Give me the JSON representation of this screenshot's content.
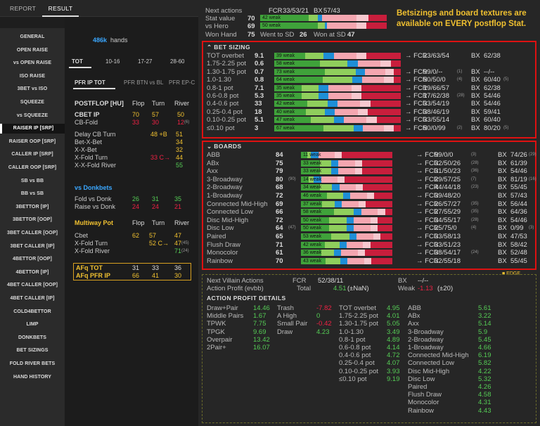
{
  "tabs": [
    "REPORT",
    "RESULT"
  ],
  "sidebar": [
    "GENERAL",
    "OPEN RAISE",
    "vs OPEN RAISE",
    "ISO RAISE",
    "3BET vs ISO",
    "SQUEEZE",
    "vs SQUEEZE",
    "RAISER IP [SRP]",
    "RAISER OOP [SRP]",
    "CALLER IP [SRP]",
    "CALLER OOP [SRP]",
    "SB vs BB",
    "BB vs SB",
    "3BETTOR [IP]",
    "3BETTOR [OOP]",
    "3BET CALLER [OOP]",
    "3BET CALLER [IP]",
    "4BETTOR [OOP]",
    "4BETTOR [IP]",
    "4BET CALLER [OOP]",
    "4BET CALLER [IP]",
    "COLD4BETTOR",
    "LIMP",
    "DONKBETS",
    "BET SIZINGS",
    "FOLD RIVER BETS",
    "HAND HISTORY"
  ],
  "hands": {
    "count": "486k",
    "label": "hands"
  },
  "stack_tabs": [
    "TOT",
    "10-16",
    "17-27",
    "28-60"
  ],
  "pos_tabs": [
    "PFR IP TOT",
    "PFR BTN vs BL",
    "PFR EP-C"
  ],
  "postflop": {
    "title": "POSTFLOP [HU]",
    "cols": [
      "Flop",
      "Turn",
      "River"
    ],
    "rows": [
      [
        "CBET IP",
        "70",
        "57",
        "50",
        ""
      ],
      [
        "CB-Fold",
        "33",
        "30",
        "12",
        "(6)"
      ]
    ]
  },
  "delay": [
    [
      "Delay CB Turn",
      "",
      "48 +B",
      "51"
    ],
    [
      "Bet-X-Bet",
      "",
      "",
      "34"
    ],
    [
      "X-X-Bet",
      "",
      "",
      "32"
    ],
    [
      "X-Fold Turn",
      "",
      "33 C→",
      "44"
    ],
    [
      "X-X-Fold River",
      "",
      "",
      "55"
    ]
  ],
  "donk": {
    "title": "vs Donkbets",
    "rows": [
      [
        "Fold vs Donk",
        "26",
        "31",
        "35"
      ],
      [
        "Raise vs Donk",
        "24",
        "24",
        "21"
      ]
    ]
  },
  "multi": {
    "title": "Multiway Pot",
    "cols": [
      "Flop",
      "Turn",
      "River"
    ],
    "rows": [
      [
        "Cbet",
        "62",
        "57",
        "47"
      ],
      [
        "X-Fold Turn",
        "",
        "52 C→",
        "47"
      ],
      [
        "X-Fold River",
        "",
        "",
        "71"
      ]
    ],
    "subs": [
      "(45)",
      "(24)"
    ]
  },
  "afq": {
    "rows": [
      [
        "AFq TOT",
        "31",
        "33",
        "36"
      ],
      [
        "AFq PFR IP",
        "66",
        "41",
        "30"
      ]
    ]
  },
  "summary": {
    "rows": [
      [
        "Next actions",
        "",
        "FCR",
        "33/53/21",
        "BX",
        "57/43"
      ],
      [
        "Stat value",
        "70",
        "42 weak",
        "",
        "",
        ""
      ],
      [
        "vs Hero",
        "69",
        "50 weak",
        "",
        "",
        ""
      ],
      [
        "Won Hand",
        "75",
        "Went to SD",
        "26",
        "Won at SD",
        "47"
      ]
    ]
  },
  "note": "Betsizings and board textures are available on EVERY postflop Stat.",
  "betsizing": {
    "title": "BET SIZING",
    "rows": [
      [
        "TOT overbet",
        "9.1",
        "39 weak",
        "23/63/54",
        "",
        "62/38",
        ""
      ],
      [
        "1.75-2.25 pot",
        "0.6",
        "58 weak",
        "",
        "",
        "",
        ""
      ],
      [
        "1.30-1.75 pot",
        "0.7",
        "73 weak",
        "99/0/--",
        "(1)",
        "--/--",
        ""
      ],
      [
        "1.0-1.30",
        "0.8",
        "64 weak",
        "50/50/0",
        "(4)",
        "60/40",
        "(5)"
      ],
      [
        "0.8-1 pot",
        "7.1",
        "35 weak",
        "19/66/57",
        "",
        "62/38",
        ""
      ],
      [
        "0.6-0.8 pot",
        "5.3",
        "35 weak",
        "17/62/38",
        "(28)",
        "54/46",
        ""
      ],
      [
        "0.4-0.6 pot",
        "33",
        "42 weak",
        "33/54/19",
        "",
        "54/46",
        ""
      ],
      [
        "0.25-0.4 pot",
        "18",
        "40 weak",
        "38/46/19",
        "",
        "59/41",
        ""
      ],
      [
        "0.10-0.25 pot",
        "5.1",
        "47 weak",
        "33/55/14",
        "",
        "60/40",
        ""
      ],
      [
        "≤0.10 pot",
        "3",
        "67 weak",
        "50/0/99",
        "(2)",
        "80/20",
        "(5)"
      ]
    ]
  },
  "boards": {
    "title": "BOARDS",
    "rows": [
      [
        "ABB",
        "84",
        "",
        "11 weak",
        "99/0/0",
        "(3)",
        "74/26",
        "(29)"
      ],
      [
        "ABx",
        "75",
        "",
        "33 weak",
        "32/50/26",
        "(28)",
        "61/39",
        ""
      ],
      [
        "Axx",
        "79",
        "",
        "33 weak",
        "31/50/23",
        "(36)",
        "54/46",
        ""
      ],
      [
        "3-Broadway",
        "80",
        "(90)",
        "14 weak",
        "29/57/25",
        "(7)",
        "81/19",
        "(16)"
      ],
      [
        "2-Broadway",
        "68",
        "",
        "34 weak",
        "44/44/18",
        "(23)",
        "55/45",
        ""
      ],
      [
        "1-Broadway",
        "72",
        "",
        "46 weak",
        "39/48/20",
        "",
        "57/43",
        ""
      ],
      [
        "Connected Mid-High",
        "69",
        "",
        "37 weak",
        "26/57/27",
        "(35)",
        "56/44",
        ""
      ],
      [
        "Connected Low",
        "66",
        "",
        "58 weak",
        "27/55/29",
        "(35)",
        "64/36",
        ""
      ],
      [
        "Disc Mid-High",
        "72",
        "",
        "50 weak",
        "34/55/17",
        "(28)",
        "54/46",
        ""
      ],
      [
        "Disc Low",
        "64",
        "(47)",
        "50 weak",
        "25/75/0",
        "(4)",
        "0/99",
        "(3)"
      ],
      [
        "Paired",
        "65",
        "",
        "53 weak",
        "33/58/13",
        "",
        "47/53",
        ""
      ],
      [
        "Flush Draw",
        "71",
        "",
        "42 weak",
        "33/51/23",
        "",
        "58/42",
        ""
      ],
      [
        "Monocolor",
        "61",
        "",
        "36 weak",
        "38/54/17",
        "(24)",
        "52/48",
        ""
      ],
      [
        "Rainbow",
        "70",
        "",
        "43 weak",
        "32/55/18",
        "",
        "55/45",
        ""
      ]
    ]
  },
  "edge": "EDGE",
  "next_villain": {
    "label": "Next Villain Actions",
    "fcr_label": "FCR",
    "fcr": "52/38/11",
    "bx_label": "BX",
    "bx": "--/--"
  },
  "action_profit": {
    "label": "Action Profit (evbb)",
    "total_label": "Total",
    "total": "4.51",
    "total_sub": "(±NaN)",
    "weak_label": "Weak",
    "weak": "-1.13",
    "weak_sub": "(±20)"
  },
  "apd": {
    "title": "ACTION PROFIT DETAILS",
    "c1": [
      [
        "Draw+Pair",
        "14.46"
      ],
      [
        "Middle Pairs",
        "1.67"
      ],
      [
        "TPWK",
        "7.75"
      ],
      [
        "TPGK",
        "9.69"
      ],
      [
        "Overpair",
        "13.42"
      ],
      [
        "2Pair+",
        "16.07"
      ]
    ],
    "c2": [
      [
        "Trash",
        "-7.82"
      ],
      [
        "A High",
        "0"
      ],
      [
        "Small Pair",
        "-0.42"
      ],
      [
        "Draw",
        "4.23"
      ]
    ],
    "c3": [
      [
        "TOT overbet",
        "4.95"
      ],
      [
        "1.75-2.25 pot",
        "4.01"
      ],
      [
        "1.30-1.75 pot",
        "5.05"
      ],
      [
        "1.0-1.30",
        "3.49"
      ],
      [
        "0.8-1 pot",
        "4.89"
      ],
      [
        "0.6-0.8 pot",
        "4.14"
      ],
      [
        "0.4-0.6 pot",
        "4.72"
      ],
      [
        "0.25-0.4 pot",
        "4.07"
      ],
      [
        "0.10-0.25 pot",
        "3.93"
      ],
      [
        "≤0.10 pot",
        "9.19"
      ]
    ],
    "c4": [
      [
        "ABB",
        "5.61"
      ],
      [
        "ABx",
        "3.22"
      ],
      [
        "Axx",
        "5.14"
      ],
      [
        "3-Broadway",
        "5.9"
      ],
      [
        "2-Broadway",
        "5.45"
      ],
      [
        "1-Broadway",
        "4.66"
      ],
      [
        "Connected Mid-High",
        "6.19"
      ],
      [
        "Connected Low",
        "5.82"
      ],
      [
        "Disc Mid-High",
        "4.22"
      ],
      [
        "Disc Low",
        "5.32"
      ],
      [
        "Paired",
        "4.26"
      ],
      [
        "Flush Draw",
        "4.58"
      ],
      [
        "Monocolor",
        "4.31"
      ],
      [
        "Rainbow",
        "4.43"
      ]
    ]
  },
  "colors": {
    "green": "#3fa23a",
    "lightgreen": "#8fce5c",
    "blue": "#1e8ed6",
    "pink": "#f4a6b0",
    "lightpink": "#f7c8cf",
    "red": "#c81e3c",
    "accent": "#f0c030"
  }
}
